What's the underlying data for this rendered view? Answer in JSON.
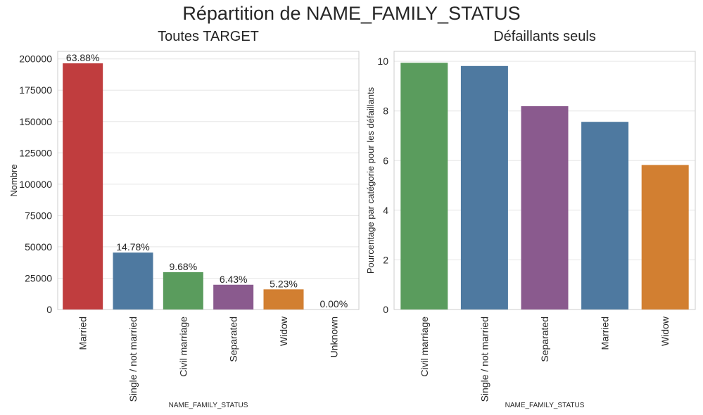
{
  "figure": {
    "suptitle": "Répartition de NAME_FAMILY_STATUS"
  },
  "colors": {
    "red": "#c03d3e",
    "blue": "#4e79a0",
    "green": "#5a9c5d",
    "purple": "#8a5a8e",
    "orange": "#d27f31",
    "grid": "#e6e6e6",
    "spine": "#cccccc"
  },
  "chart_data": [
    {
      "type": "bar",
      "title": "Toutes TARGET",
      "xlabel": "NAME_FAMILY_STATUS",
      "ylabel": "Nombre",
      "ylim": [
        0,
        206000
      ],
      "yticks": [
        0,
        25000,
        50000,
        75000,
        100000,
        125000,
        150000,
        175000,
        200000
      ],
      "yticklabels": [
        "0",
        "25000",
        "50000",
        "75000",
        "100000",
        "125000",
        "150000",
        "175000",
        "200000"
      ],
      "grid": true,
      "categories": [
        "Married",
        "Single / not married",
        "Civil marriage",
        "Separated",
        "Widow",
        "Unknown"
      ],
      "values": [
        196432,
        45444,
        29775,
        19770,
        16088,
        2
      ],
      "labels": [
        "63.88%",
        "14.78%",
        "9.68%",
        "6.43%",
        "5.23%",
        "0.00%"
      ],
      "colors": [
        "#c03d3e",
        "#4e79a0",
        "#5a9c5d",
        "#8a5a8e",
        "#d27f31",
        "#8c8c8c"
      ]
    },
    {
      "type": "bar",
      "title": "Défaillants seuls",
      "xlabel": "NAME_FAMILY_STATUS",
      "ylabel": "Pourcentage par catégorie pour les défaillants",
      "ylim": [
        0,
        10.4
      ],
      "yticks": [
        0,
        2,
        4,
        6,
        8,
        10
      ],
      "yticklabels": [
        "0",
        "2",
        "4",
        "6",
        "8",
        "10"
      ],
      "grid": true,
      "categories": [
        "Civil marriage",
        "Single / not married",
        "Separated",
        "Married",
        "Widow"
      ],
      "values": [
        9.94,
        9.81,
        8.19,
        7.56,
        5.82
      ],
      "colors": [
        "#5a9c5d",
        "#4e79a0",
        "#8a5a8e",
        "#4e79a0",
        "#d27f31"
      ]
    }
  ]
}
